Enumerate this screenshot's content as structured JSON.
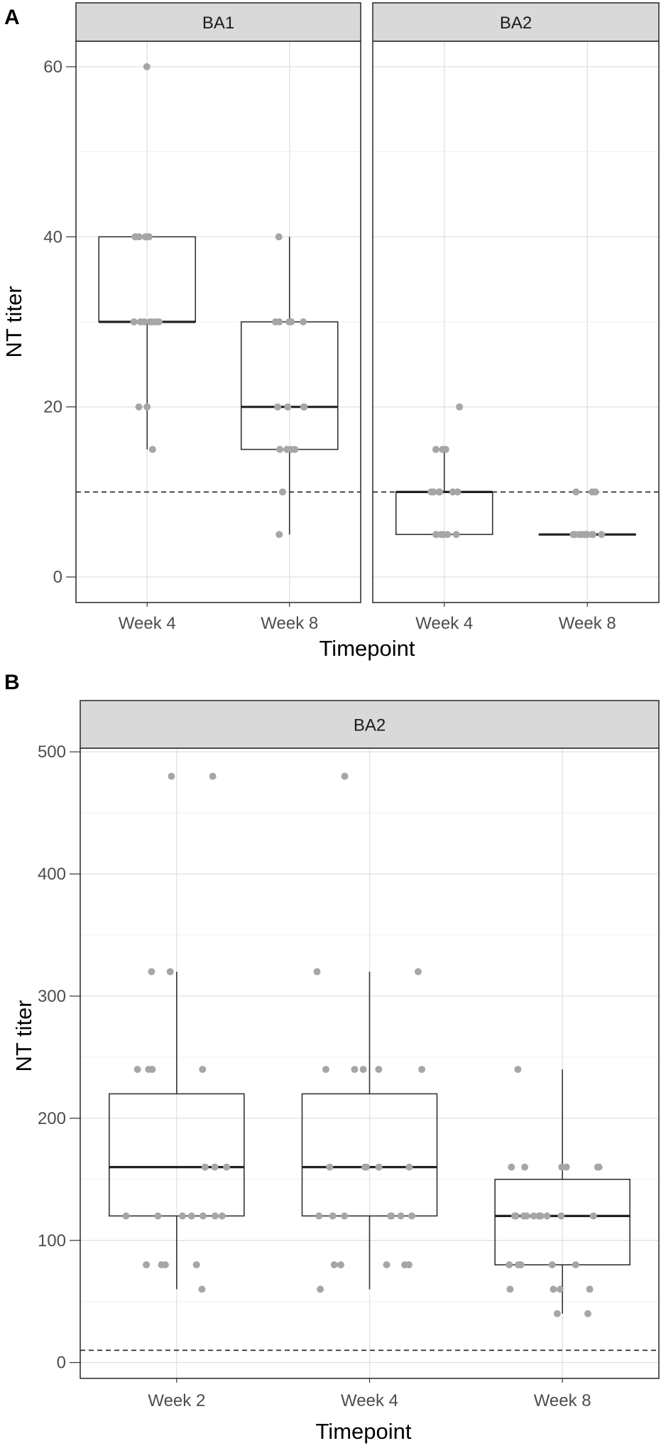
{
  "chart_data": [
    {
      "panel_label": "A",
      "type": "boxplot",
      "facets": [
        {
          "title": "BA1",
          "categories": [
            "Week 4",
            "Week 8"
          ],
          "boxes": [
            {
              "category": "Week 4",
              "min": 15,
              "q1": 30,
              "median": 30,
              "q3": 40,
              "max": 40,
              "points": [
                60,
                40,
                40,
                40,
                40,
                40,
                30,
                30,
                30,
                30,
                30,
                30,
                30,
                30,
                20,
                20,
                15
              ]
            },
            {
              "category": "Week 8",
              "min": 5,
              "q1": 15,
              "median": 20,
              "q3": 30,
              "max": 40,
              "points": [
                40,
                30,
                30,
                30,
                30,
                30,
                20,
                20,
                20,
                20,
                15,
                15,
                15,
                15,
                10,
                5
              ]
            }
          ]
        },
        {
          "title": "BA2",
          "categories": [
            "Week 4",
            "Week 8"
          ],
          "boxes": [
            {
              "category": "Week 4",
              "min": 5,
              "q1": 5,
              "median": 10,
              "q3": 10,
              "max": 15,
              "points": [
                20,
                15,
                15,
                15,
                10,
                10,
                10,
                10,
                10,
                10,
                10,
                5,
                5,
                5,
                5,
                5,
                5
              ]
            },
            {
              "category": "Week 8",
              "min": 5,
              "q1": 5,
              "median": 5,
              "q3": 5,
              "max": 5,
              "points": [
                10,
                10,
                10,
                5,
                5,
                5,
                5,
                5,
                5,
                5,
                5,
                5,
                5,
                5,
                5
              ]
            }
          ]
        }
      ],
      "reference_line": 10,
      "ylim": [
        -3,
        63
      ],
      "yticks": [
        0,
        20,
        40,
        60
      ],
      "xlabel": "Timepoint",
      "ylabel": "NT titer",
      "grid": true
    },
    {
      "panel_label": "B",
      "type": "boxplot",
      "facets": [
        {
          "title": "BA2",
          "categories": [
            "Week 2",
            "Week 4",
            "Week 8"
          ],
          "boxes": [
            {
              "category": "Week 2",
              "min": 60,
              "q1": 120,
              "median": 160,
              "q3": 220,
              "max": 320,
              "points": [
                480,
                480,
                320,
                320,
                240,
                240,
                240,
                240,
                160,
                160,
                160,
                120,
                120,
                120,
                120,
                120,
                120,
                120,
                80,
                80,
                80,
                80,
                60
              ]
            },
            {
              "category": "Week 4",
              "min": 60,
              "q1": 120,
              "median": 160,
              "q3": 220,
              "max": 320,
              "points": [
                480,
                320,
                320,
                240,
                240,
                240,
                240,
                240,
                160,
                160,
                160,
                160,
                160,
                120,
                120,
                120,
                120,
                120,
                120,
                120,
                80,
                80,
                80,
                80,
                80,
                60
              ]
            },
            {
              "category": "Week 8",
              "min": 40,
              "q1": 80,
              "median": 120,
              "q3": 150,
              "max": 240,
              "points": [
                240,
                160,
                160,
                160,
                160,
                160,
                160,
                120,
                120,
                120,
                120,
                120,
                120,
                120,
                120,
                120,
                120,
                80,
                80,
                80,
                80,
                80,
                60,
                60,
                60,
                60,
                40,
                40
              ]
            }
          ]
        }
      ],
      "reference_line": 10,
      "ylim": [
        -13,
        503
      ],
      "yticks": [
        0,
        100,
        200,
        300,
        400,
        500
      ],
      "xlabel": "Timepoint",
      "ylabel": "NT titer",
      "grid": true
    }
  ]
}
